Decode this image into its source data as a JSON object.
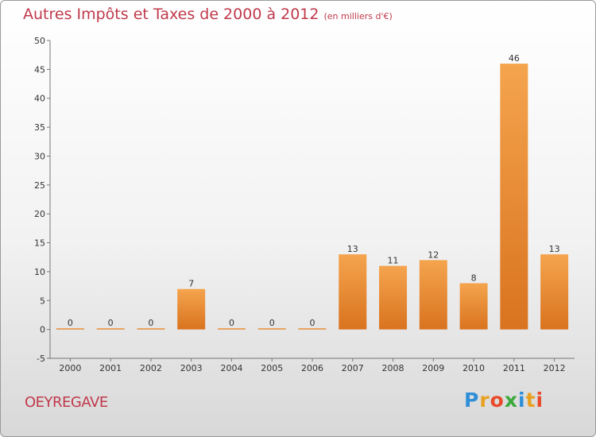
{
  "header": {
    "title": "Autres Impôts et Taxes de 2000 à 2012",
    "subtitle": "(en milliers d'€)"
  },
  "footer": {
    "commune": "OEYREGAVE",
    "logo_text": "Proxiti"
  },
  "colors": {
    "bar_top": "#f5a44e",
    "bar_bottom": "#d9731f",
    "title": "#c0394b"
  },
  "chart_data": {
    "type": "bar",
    "title": "Autres Impôts et Taxes de 2000 à 2012",
    "subtitle": "(en milliers d'€)",
    "categories": [
      "2000",
      "2001",
      "2002",
      "2003",
      "2004",
      "2005",
      "2006",
      "2007",
      "2008",
      "2009",
      "2010",
      "2011",
      "2012"
    ],
    "values": [
      0,
      0,
      0,
      7,
      0,
      0,
      0,
      13,
      11,
      12,
      8,
      46,
      13
    ],
    "data_labels": [
      "0",
      "0",
      "0",
      "7",
      "0",
      "0",
      "0",
      "13",
      "11",
      "12",
      "8",
      "46",
      "13"
    ],
    "ylim": [
      -5,
      50
    ],
    "yticks": [
      -5,
      0,
      5,
      10,
      15,
      20,
      25,
      30,
      35,
      40,
      45,
      50
    ],
    "grid": false,
    "legend": "none"
  }
}
